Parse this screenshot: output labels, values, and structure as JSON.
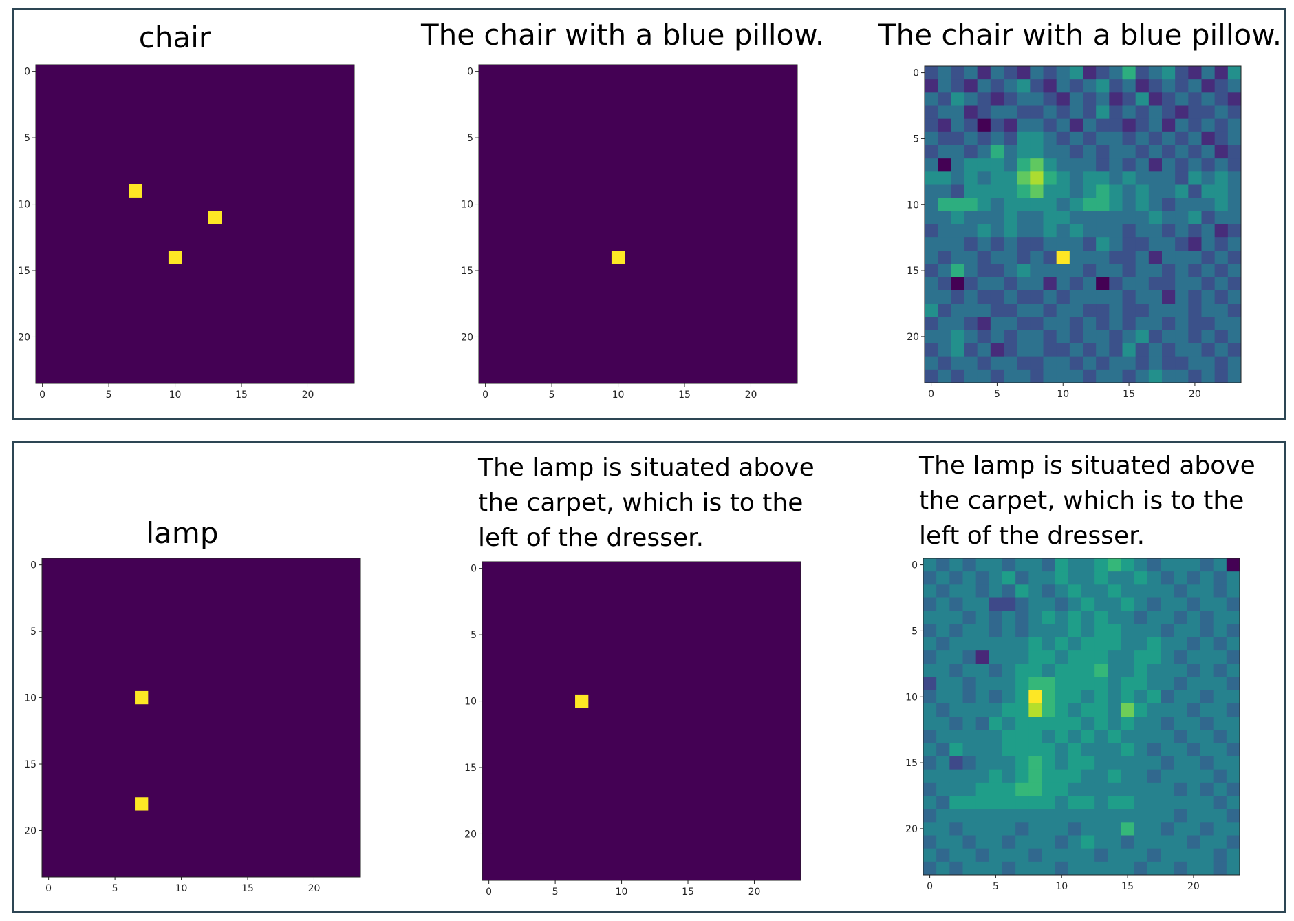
{
  "chart_data": [
    {
      "type": "heatmap",
      "title": "chair",
      "xlim": [
        -0.5,
        23.5
      ],
      "ylim": [
        23.5,
        -0.5
      ],
      "xticks": [
        0,
        5,
        10,
        15,
        20
      ],
      "yticks": [
        0,
        5,
        10,
        15,
        20
      ],
      "colormap": "viridis",
      "x": [
        7,
        13,
        10
      ],
      "y": [
        9,
        11,
        14
      ]
    },
    {
      "type": "heatmap",
      "title": "The chair with a blue pillow.",
      "xlim": [
        -0.5,
        23.5
      ],
      "ylim": [
        23.5,
        -0.5
      ],
      "xticks": [
        0,
        5,
        10,
        15,
        20
      ],
      "yticks": [
        0,
        5,
        10,
        15,
        20
      ],
      "colormap": "viridis",
      "x": [
        10
      ],
      "y": [
        14
      ]
    },
    {
      "type": "heatmap",
      "title": "The chair with a blue pillow.",
      "xlim": [
        -0.5,
        23.5
      ],
      "ylim": [
        23.5,
        -0.5
      ],
      "xticks": [
        0,
        5,
        10,
        15,
        20
      ],
      "yticks": [
        0,
        5,
        10,
        15,
        20
      ],
      "colormap": "viridis",
      "z": [
        [
          3,
          4,
          3,
          4,
          2,
          4,
          3,
          2,
          4,
          3,
          4,
          5,
          2,
          3,
          4,
          6,
          3,
          4,
          5,
          3,
          2,
          4,
          2,
          5
        ],
        [
          2,
          4,
          3,
          2,
          4,
          3,
          4,
          5,
          3,
          2,
          4,
          3,
          4,
          5,
          3,
          4,
          2,
          3,
          4,
          3,
          4,
          2,
          3,
          4
        ],
        [
          4,
          3,
          5,
          4,
          3,
          2,
          3,
          4,
          4,
          3,
          2,
          4,
          3,
          4,
          2,
          3,
          5,
          2,
          3,
          4,
          3,
          4,
          3,
          2
        ],
        [
          3,
          4,
          4,
          2,
          3,
          4,
          4,
          3,
          3,
          4,
          3,
          4,
          3,
          5,
          3,
          4,
          3,
          4,
          3,
          2,
          3,
          3,
          4,
          3
        ],
        [
          3,
          2,
          4,
          3,
          1,
          3,
          2,
          4,
          4,
          3,
          4,
          2,
          4,
          3,
          3,
          2,
          3,
          4,
          2,
          4,
          3,
          4,
          3,
          4
        ],
        [
          4,
          3,
          3,
          4,
          3,
          4,
          3,
          5,
          5,
          4,
          3,
          4,
          3,
          4,
          4,
          3,
          4,
          3,
          4,
          3,
          4,
          2,
          3,
          4
        ],
        [
          3,
          4,
          4,
          3,
          4,
          6,
          4,
          5,
          5,
          4,
          4,
          3,
          4,
          3,
          4,
          4,
          3,
          4,
          3,
          4,
          3,
          4,
          2,
          3
        ],
        [
          4,
          1,
          4,
          5,
          5,
          5,
          4,
          6,
          7,
          5,
          4,
          4,
          4,
          3,
          4,
          3,
          4,
          2,
          4,
          3,
          4,
          3,
          4,
          3
        ],
        [
          5,
          5,
          4,
          5,
          4,
          5,
          5,
          7,
          8,
          6,
          5,
          4,
          5,
          5,
          4,
          5,
          4,
          4,
          4,
          3,
          5,
          4,
          5,
          4
        ],
        [
          4,
          4,
          3,
          5,
          5,
          5,
          5,
          6,
          7,
          5,
          5,
          4,
          5,
          6,
          5,
          4,
          5,
          4,
          4,
          5,
          3,
          5,
          5,
          4
        ],
        [
          4,
          6,
          6,
          6,
          5,
          4,
          5,
          5,
          5,
          5,
          4,
          5,
          6,
          6,
          5,
          4,
          5,
          4,
          3,
          4,
          4,
          4,
          5,
          4
        ],
        [
          4,
          4,
          5,
          4,
          4,
          4,
          5,
          4,
          4,
          5,
          5,
          4,
          4,
          4,
          4,
          4,
          4,
          5,
          4,
          4,
          5,
          3,
          4,
          4
        ],
        [
          3,
          4,
          4,
          4,
          5,
          4,
          5,
          4,
          4,
          5,
          4,
          5,
          4,
          4,
          4,
          3,
          4,
          4,
          3,
          4,
          3,
          4,
          2,
          3
        ],
        [
          4,
          4,
          4,
          3,
          4,
          3,
          4,
          3,
          3,
          4,
          4,
          4,
          3,
          5,
          4,
          3,
          3,
          4,
          4,
          3,
          2,
          4,
          3,
          4
        ],
        [
          4,
          3,
          4,
          4,
          3,
          4,
          4,
          3,
          4,
          3,
          9,
          4,
          4,
          4,
          3,
          3,
          4,
          2,
          4,
          4,
          4,
          3,
          4,
          3
        ],
        [
          3,
          4,
          6,
          4,
          3,
          3,
          4,
          5,
          4,
          4,
          4,
          4,
          3,
          4,
          4,
          3,
          4,
          4,
          3,
          4,
          3,
          4,
          3,
          4
        ],
        [
          4,
          3,
          1,
          3,
          4,
          4,
          3,
          4,
          4,
          2,
          4,
          3,
          4,
          1,
          3,
          4,
          4,
          3,
          3,
          4,
          4,
          3,
          4,
          3
        ],
        [
          4,
          4,
          3,
          4,
          3,
          3,
          4,
          3,
          3,
          4,
          3,
          4,
          4,
          4,
          4,
          3,
          4,
          4,
          2,
          4,
          3,
          4,
          3,
          4
        ],
        [
          5,
          3,
          4,
          4,
          4,
          3,
          3,
          4,
          4,
          3,
          4,
          4,
          3,
          3,
          4,
          3,
          3,
          4,
          4,
          4,
          3,
          4,
          4,
          3
        ],
        [
          3,
          4,
          4,
          3,
          2,
          4,
          4,
          3,
          3,
          4,
          4,
          3,
          4,
          3,
          4,
          3,
          4,
          4,
          3,
          4,
          3,
          3,
          4,
          4
        ],
        [
          4,
          4,
          5,
          4,
          3,
          4,
          3,
          4,
          4,
          3,
          4,
          3,
          4,
          4,
          3,
          4,
          5,
          3,
          4,
          4,
          3,
          4,
          3,
          4
        ],
        [
          3,
          4,
          5,
          3,
          4,
          2,
          3,
          4,
          4,
          3,
          3,
          4,
          3,
          4,
          3,
          5,
          3,
          4,
          3,
          4,
          4,
          3,
          4,
          3
        ],
        [
          4,
          3,
          4,
          4,
          3,
          4,
          4,
          3,
          3,
          4,
          4,
          3,
          4,
          3,
          4,
          4,
          3,
          4,
          3,
          3,
          4,
          4,
          3,
          4
        ],
        [
          3,
          4,
          3,
          4,
          4,
          3,
          4,
          4,
          3,
          4,
          4,
          4,
          3,
          4,
          4,
          3,
          4,
          5,
          4,
          4,
          3,
          4,
          3,
          4
        ]
      ]
    },
    {
      "type": "heatmap",
      "title": "lamp",
      "xlim": [
        -0.5,
        23.5
      ],
      "ylim": [
        23.5,
        -0.5
      ],
      "xticks": [
        0,
        5,
        10,
        15,
        20
      ],
      "yticks": [
        0,
        5,
        10,
        15,
        20
      ],
      "colormap": "viridis",
      "x": [
        7,
        7
      ],
      "y": [
        10,
        18
      ]
    },
    {
      "type": "heatmap",
      "title": "The lamp is situated above the carpet, which is to the left of the dresser.",
      "xlim": [
        -0.5,
        23.5
      ],
      "ylim": [
        23.5,
        -0.5
      ],
      "xticks": [
        0,
        5,
        10,
        15,
        20
      ],
      "yticks": [
        0,
        5,
        10,
        15,
        20
      ],
      "colormap": "viridis",
      "x": [
        7
      ],
      "y": [
        10
      ]
    },
    {
      "type": "heatmap",
      "title": "The lamp is situated above the carpet, which is to the left of the dresser.",
      "xlim": [
        -0.5,
        23.5
      ],
      "ylim": [
        23.5,
        -0.5
      ],
      "xticks": [
        0,
        5,
        10,
        15,
        20
      ],
      "yticks": [
        0,
        5,
        10,
        15,
        20
      ],
      "colormap": "viridis",
      "z": [
        [
          4,
          3,
          4,
          3,
          4,
          4,
          3,
          4,
          4,
          3,
          5,
          4,
          4,
          5,
          6,
          5,
          4,
          3,
          4,
          4,
          4,
          3,
          4,
          0
        ],
        [
          3,
          4,
          3,
          4,
          3,
          4,
          5,
          3,
          4,
          4,
          5,
          4,
          4,
          5,
          4,
          4,
          5,
          4,
          3,
          4,
          3,
          4,
          3,
          4
        ],
        [
          4,
          3,
          4,
          4,
          3,
          4,
          3,
          5,
          4,
          3,
          4,
          5,
          4,
          4,
          5,
          4,
          4,
          4,
          4,
          3,
          4,
          4,
          3,
          4
        ],
        [
          3,
          4,
          3,
          4,
          4,
          2,
          2,
          3,
          4,
          4,
          3,
          4,
          5,
          4,
          4,
          5,
          4,
          3,
          4,
          4,
          3,
          4,
          4,
          3
        ],
        [
          4,
          4,
          4,
          3,
          4,
          3,
          4,
          3,
          4,
          5,
          4,
          5,
          4,
          5,
          4,
          4,
          3,
          4,
          4,
          3,
          4,
          3,
          4,
          4
        ],
        [
          3,
          4,
          3,
          4,
          4,
          3,
          4,
          3,
          4,
          4,
          4,
          5,
          4,
          5,
          5,
          4,
          4,
          4,
          3,
          4,
          4,
          3,
          4,
          3
        ],
        [
          4,
          3,
          4,
          4,
          4,
          4,
          4,
          4,
          5,
          4,
          5,
          4,
          5,
          5,
          5,
          4,
          4,
          5,
          4,
          4,
          3,
          4,
          3,
          4
        ],
        [
          3,
          4,
          4,
          3,
          1,
          4,
          4,
          4,
          5,
          5,
          4,
          5,
          5,
          5,
          4,
          4,
          5,
          5,
          4,
          3,
          4,
          4,
          4,
          3
        ],
        [
          4,
          4,
          3,
          4,
          4,
          3,
          4,
          5,
          5,
          4,
          5,
          5,
          5,
          6,
          4,
          4,
          5,
          4,
          4,
          4,
          3,
          4,
          3,
          4
        ],
        [
          2,
          4,
          4,
          3,
          4,
          4,
          4,
          5,
          6,
          6,
          5,
          5,
          5,
          5,
          4,
          5,
          5,
          4,
          4,
          3,
          4,
          4,
          4,
          3
        ],
        [
          3,
          4,
          4,
          3,
          4,
          3,
          4,
          5,
          9,
          6,
          5,
          5,
          4,
          5,
          4,
          5,
          4,
          5,
          3,
          4,
          4,
          3,
          4,
          4
        ],
        [
          4,
          3,
          4,
          4,
          4,
          4,
          5,
          5,
          8,
          6,
          5,
          4,
          5,
          5,
          4,
          7,
          5,
          4,
          4,
          4,
          3,
          4,
          4,
          3
        ],
        [
          4,
          4,
          3,
          4,
          3,
          5,
          4,
          5,
          5,
          5,
          5,
          5,
          4,
          5,
          4,
          5,
          4,
          4,
          3,
          4,
          4,
          3,
          4,
          4
        ],
        [
          3,
          4,
          4,
          4,
          4,
          4,
          5,
          5,
          5,
          4,
          5,
          4,
          5,
          4,
          5,
          4,
          4,
          4,
          4,
          3,
          4,
          4,
          3,
          4
        ],
        [
          4,
          3,
          5,
          4,
          4,
          4,
          5,
          5,
          5,
          5,
          4,
          5,
          4,
          4,
          4,
          5,
          4,
          3,
          4,
          4,
          3,
          4,
          4,
          3
        ],
        [
          3,
          4,
          2,
          3,
          4,
          4,
          4,
          5,
          6,
          5,
          4,
          5,
          5,
          4,
          4,
          4,
          4,
          4,
          3,
          4,
          4,
          3,
          4,
          4
        ],
        [
          4,
          4,
          4,
          4,
          4,
          5,
          4,
          5,
          6,
          5,
          5,
          5,
          4,
          4,
          5,
          4,
          4,
          3,
          4,
          4,
          4,
          4,
          3,
          4
        ],
        [
          3,
          4,
          4,
          4,
          5,
          5,
          5,
          6,
          6,
          5,
          5,
          4,
          4,
          4,
          4,
          4,
          4,
          4,
          4,
          3,
          4,
          3,
          4,
          3
        ],
        [
          4,
          3,
          5,
          5,
          5,
          5,
          5,
          5,
          5,
          5,
          4,
          5,
          5,
          4,
          5,
          5,
          4,
          4,
          4,
          4,
          4,
          4,
          3,
          4
        ],
        [
          3,
          4,
          4,
          4,
          4,
          4,
          4,
          4,
          4,
          4,
          4,
          4,
          4,
          4,
          4,
          4,
          4,
          4,
          4,
          3,
          4,
          4,
          4,
          3
        ],
        [
          4,
          4,
          3,
          4,
          4,
          4,
          4,
          3,
          4,
          4,
          4,
          3,
          4,
          4,
          4,
          6,
          4,
          4,
          3,
          4,
          4,
          3,
          4,
          4
        ],
        [
          3,
          4,
          4,
          3,
          4,
          4,
          3,
          4,
          4,
          4,
          3,
          4,
          5,
          4,
          4,
          3,
          4,
          4,
          4,
          4,
          3,
          4,
          4,
          3
        ],
        [
          4,
          3,
          4,
          4,
          3,
          4,
          4,
          4,
          3,
          4,
          4,
          4,
          4,
          3,
          4,
          4,
          4,
          3,
          4,
          4,
          4,
          4,
          3,
          4
        ],
        [
          3,
          4,
          3,
          4,
          4,
          4,
          3,
          4,
          4,
          4,
          3,
          4,
          4,
          4,
          4,
          4,
          3,
          4,
          4,
          3,
          4,
          4,
          3,
          4
        ]
      ]
    }
  ]
}
